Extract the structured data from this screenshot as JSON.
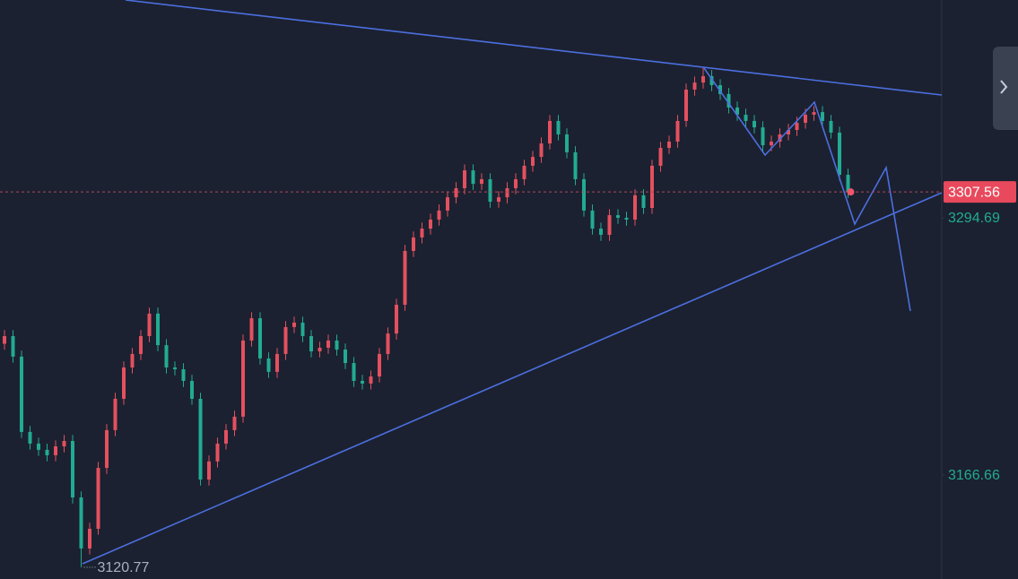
{
  "chart_data": {
    "type": "candlestick",
    "up_color": "#e4505f",
    "down_color": "#22ab92",
    "ylim": [
      3114.9,
      3403.1
    ],
    "yticks": [
      3294.69,
      3166.66
    ],
    "last_price": 3307.56,
    "low_marker": 3120.77,
    "open": [
      3232.0,
      3235.8,
      3225.6,
      3188.1,
      3182.3,
      3179.2,
      3176.5,
      3180.9,
      3183.6,
      3155.5,
      3130.1,
      3139.9,
      3170.2,
      3189.0,
      3204.6,
      3220.2,
      3226.9,
      3235.8,
      3247.0,
      3231.3,
      3220.2,
      3219.3,
      3213.5,
      3204.6,
      3164.4,
      3173.4,
      3182.3,
      3189.0,
      3195.7,
      3233.6,
      3244.7,
      3224.7,
      3218.0,
      3226.9,
      3240.3,
      3242.5,
      3235.8,
      3228.2,
      3230.0,
      3233.6,
      3229.1,
      3222.4,
      3213.5,
      3212.2,
      3215.7,
      3226.9,
      3237.1,
      3251.4,
      3278.2,
      3284.9,
      3289.3,
      3293.8,
      3298.3,
      3304.9,
      3309.4,
      3318.3,
      3311.6,
      3313.9,
      3302.7,
      3304.9,
      3309.4,
      3313.9,
      3320.6,
      3325.0,
      3331.7,
      3342.9,
      3336.2,
      3327.3,
      3313.9,
      3298.3,
      3289.3,
      3286.2,
      3296.0,
      3294.7,
      3293.8,
      3305.9,
      3299.6,
      3320.6,
      3329.5,
      3332.6,
      3342.9,
      3358.5,
      3362.0,
      3365.2,
      3360.7,
      3356.3,
      3349.6,
      3346.0,
      3342.9,
      3339.7,
      3330.8,
      3332.6,
      3336.2,
      3338.4,
      3342.0,
      3346.0,
      3347.3,
      3342.9,
      3337.1,
      3316.1
    ],
    "high": [
      3238.8,
      3238.8,
      3228.6,
      3191.1,
      3185.3,
      3182.2,
      3183.9,
      3186.6,
      3186.6,
      3158.5,
      3142.9,
      3173.2,
      3192.0,
      3207.6,
      3223.2,
      3229.9,
      3238.8,
      3250.0,
      3250.0,
      3234.3,
      3223.2,
      3222.3,
      3216.5,
      3207.6,
      3176.4,
      3185.3,
      3192.0,
      3198.7,
      3236.6,
      3247.7,
      3247.7,
      3227.7,
      3229.9,
      3243.3,
      3245.5,
      3245.5,
      3238.8,
      3233.0,
      3236.6,
      3236.6,
      3232.1,
      3225.4,
      3216.5,
      3218.7,
      3229.9,
      3240.1,
      3254.4,
      3281.2,
      3287.9,
      3292.3,
      3296.8,
      3301.3,
      3307.9,
      3312.4,
      3321.3,
      3321.3,
      3316.9,
      3316.9,
      3307.9,
      3312.4,
      3316.9,
      3323.6,
      3328.0,
      3334.7,
      3345.9,
      3345.9,
      3339.2,
      3330.3,
      3316.9,
      3301.3,
      3292.3,
      3299.0,
      3299.0,
      3297.7,
      3308.9,
      3308.9,
      3323.6,
      3332.5,
      3335.6,
      3345.9,
      3361.5,
      3365.0,
      3369.2,
      3368.2,
      3363.7,
      3359.3,
      3352.6,
      3349.0,
      3345.9,
      3342.7,
      3335.6,
      3339.2,
      3341.4,
      3345.0,
      3349.0,
      3350.3,
      3350.3,
      3345.9,
      3340.1,
      3319.1
    ],
    "low": [
      3229.0,
      3222.6,
      3185.1,
      3179.3,
      3176.2,
      3173.5,
      3173.5,
      3177.9,
      3152.5,
      3120.77,
      3127.1,
      3136.9,
      3167.2,
      3186.0,
      3201.6,
      3217.2,
      3223.9,
      3232.8,
      3228.3,
      3217.2,
      3216.3,
      3210.5,
      3201.6,
      3161.4,
      3161.4,
      3170.4,
      3179.3,
      3186.0,
      3192.7,
      3230.6,
      3221.7,
      3215.0,
      3215.0,
      3223.9,
      3237.3,
      3232.8,
      3225.2,
      3225.2,
      3227.0,
      3226.1,
      3219.4,
      3210.5,
      3209.2,
      3209.2,
      3212.7,
      3223.9,
      3234.1,
      3248.4,
      3275.2,
      3281.9,
      3286.3,
      3290.8,
      3295.3,
      3301.9,
      3306.4,
      3308.6,
      3308.6,
      3299.7,
      3299.7,
      3301.9,
      3306.4,
      3310.9,
      3317.6,
      3322.0,
      3328.7,
      3333.2,
      3324.3,
      3310.9,
      3295.3,
      3286.3,
      3283.2,
      3283.2,
      3291.7,
      3290.8,
      3290.8,
      3296.6,
      3296.6,
      3317.6,
      3326.5,
      3329.6,
      3339.9,
      3355.5,
      3359.0,
      3357.7,
      3353.3,
      3346.6,
      3343.0,
      3339.9,
      3336.7,
      3327.8,
      3327.8,
      3329.6,
      3333.2,
      3335.4,
      3339.0,
      3343.0,
      3339.9,
      3334.1,
      3313.1,
      3304.56
    ],
    "close": [
      3235.8,
      3225.6,
      3188.1,
      3182.3,
      3179.2,
      3176.5,
      3180.9,
      3183.6,
      3155.5,
      3130.1,
      3139.9,
      3170.2,
      3189.0,
      3204.6,
      3220.2,
      3226.9,
      3235.8,
      3247.0,
      3231.3,
      3220.2,
      3219.3,
      3213.5,
      3204.6,
      3164.4,
      3173.4,
      3182.3,
      3189.0,
      3195.7,
      3233.6,
      3244.7,
      3224.7,
      3218.0,
      3226.9,
      3240.3,
      3242.5,
      3235.8,
      3228.2,
      3230.0,
      3233.6,
      3229.1,
      3222.4,
      3213.5,
      3212.2,
      3215.7,
      3226.9,
      3237.1,
      3251.4,
      3278.2,
      3284.9,
      3289.3,
      3293.8,
      3298.3,
      3304.9,
      3309.4,
      3318.3,
      3311.6,
      3313.9,
      3302.7,
      3304.9,
      3309.4,
      3313.9,
      3320.6,
      3325.0,
      3331.7,
      3342.9,
      3336.2,
      3327.3,
      3313.9,
      3298.3,
      3289.3,
      3286.2,
      3296.0,
      3294.7,
      3293.8,
      3305.9,
      3299.6,
      3320.6,
      3329.5,
      3332.6,
      3342.9,
      3358.5,
      3362.0,
      3365.2,
      3360.7,
      3356.3,
      3349.6,
      3346.0,
      3342.9,
      3339.7,
      3330.8,
      3332.6,
      3336.2,
      3338.4,
      3342.0,
      3346.0,
      3347.3,
      3342.9,
      3337.1,
      3316.1,
      3307.56
    ]
  }
}
